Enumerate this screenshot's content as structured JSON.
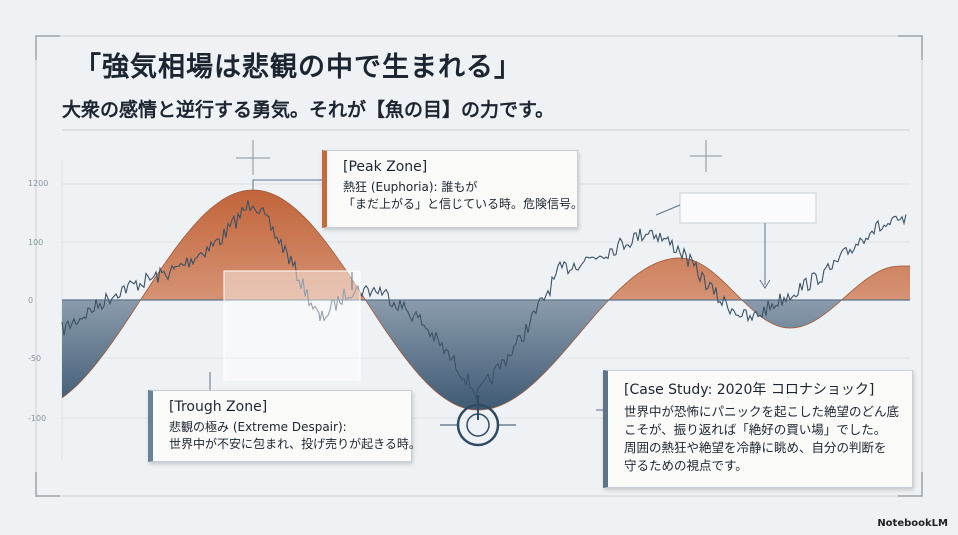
{
  "title": "「強気相場は悲観の中で生まれる」",
  "subtitle": "大衆の感情と逆行する勇気。それが【魚の目】の力です。",
  "axis_labels": [
    "1200",
    "100",
    "0",
    "-50",
    "-100"
  ],
  "callouts": {
    "peak": {
      "heading": "[Peak Zone]",
      "lines": [
        "熱狂 (Euphoria): 誰もが",
        "「まだ上がる」と信じている時。危険信号。"
      ]
    },
    "trough": {
      "heading": "[Trough Zone]",
      "lines": [
        "悲観の極み (Extreme Despair):",
        "世界中が不安に包まれ、投げ売りが起きる時。"
      ]
    },
    "case_study": {
      "heading": "[Case Study: 2020年 コロナショック]",
      "lines": [
        "世界中が恐怖にパニックを起こした絶望のどん底",
        "こそが、振り返れば「絶好の買い場」でした。",
        "周囲の熱狂や絶望を冷静に眺め、自分の判断を",
        "守るための視点です。"
      ]
    }
  },
  "brand": "NotebookLM"
}
